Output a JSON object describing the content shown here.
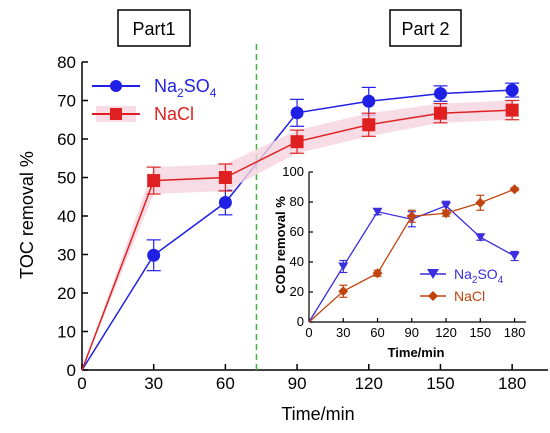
{
  "chart_data": [
    {
      "type": "line",
      "xlabel": "Time/min",
      "ylabel": "TOC removal %",
      "xlim": [
        0,
        195
      ],
      "ylim": [
        0,
        80
      ],
      "xticks": [
        "0",
        "30",
        "60",
        "90",
        "120",
        "150",
        "180"
      ],
      "yticks": [
        "0",
        "10",
        "20",
        "30",
        "40",
        "50",
        "60",
        "70",
        "80"
      ],
      "annotations": {
        "part1": "Part1",
        "part2": "Part 2"
      },
      "divider_x": 73,
      "legend_position": "top-left",
      "series": [
        {
          "name": "Na2SO4",
          "color": "#1f1fe6",
          "marker": "circle",
          "x": [
            0,
            30,
            60,
            90,
            120,
            150,
            180
          ],
          "y": [
            0,
            29.8,
            43.5,
            66.8,
            69.8,
            71.8,
            72.7
          ],
          "err": [
            0,
            4,
            3.2,
            3.5,
            3.6,
            2.0,
            1.8
          ]
        },
        {
          "name": "NaCl",
          "color": "#e02020",
          "marker": "square",
          "x": [
            0,
            30,
            60,
            90,
            120,
            150,
            180
          ],
          "y": [
            0,
            49.2,
            50.0,
            59.3,
            63.7,
            66.7,
            67.5
          ],
          "err": [
            0,
            3.5,
            3.5,
            3.0,
            3.0,
            2.5,
            2.5
          ]
        }
      ]
    },
    {
      "type": "line",
      "xlabel": "Time/min",
      "ylabel": "COD removal %",
      "xlim": [
        0,
        190
      ],
      "ylim": [
        0,
        100
      ],
      "xticks": [
        "0",
        "30",
        "60",
        "90",
        "120",
        "150",
        "180"
      ],
      "yticks": [
        "0",
        "20",
        "40",
        "60",
        "80",
        "100"
      ],
      "legend_position": "bottom-right",
      "series": [
        {
          "name": "Na2SO4",
          "color": "#3a2ee0",
          "marker": "triangle-down",
          "x": [
            0,
            30,
            60,
            90,
            120,
            150,
            180
          ],
          "y": [
            0,
            37,
            73.5,
            68.5,
            77.5,
            56.5,
            44
          ],
          "err": [
            0,
            4,
            2,
            5,
            3,
            2,
            3
          ]
        },
        {
          "name": "NaCl",
          "color": "#c1440e",
          "marker": "diamond",
          "x": [
            0,
            30,
            60,
            90,
            120,
            150,
            180
          ],
          "y": [
            0,
            20.5,
            32.5,
            70.5,
            72.5,
            79.5,
            88.5
          ],
          "err": [
            0,
            4,
            2,
            4,
            2,
            5,
            1
          ]
        }
      ]
    }
  ]
}
